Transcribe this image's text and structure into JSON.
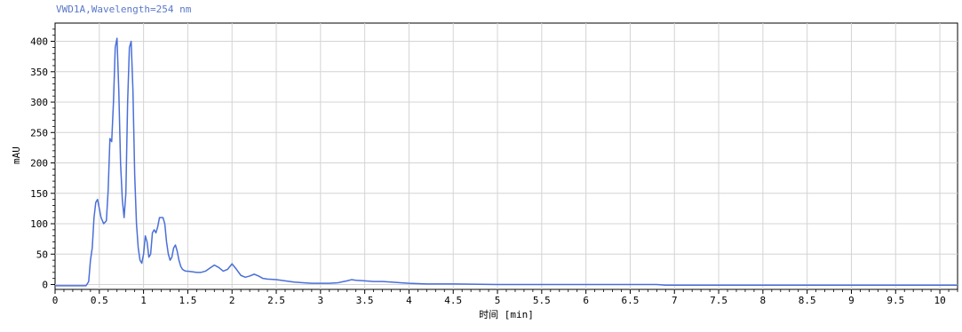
{
  "chart_data": {
    "type": "line",
    "title": "VWD1A,Wavelength=254 nm",
    "xlabel": "时间 [min]",
    "ylabel": "mAU",
    "xlim": [
      0,
      10.2
    ],
    "ylim": [
      -8,
      430
    ],
    "x_ticks": [
      0,
      0.5,
      1,
      1.5,
      2,
      2.5,
      3,
      3.5,
      4,
      4.5,
      5,
      5.5,
      6,
      6.5,
      7,
      7.5,
      8,
      8.5,
      9,
      9.5,
      10
    ],
    "x_tick_labels": [
      "0",
      "0.5",
      "1",
      "1.5",
      "2",
      "2.5",
      "3",
      "3.5",
      "4",
      "4.5",
      "5",
      "5.5",
      "6",
      "6.5",
      "7",
      "7.5",
      "8",
      "8.5",
      "9",
      "9.5",
      "10"
    ],
    "y_ticks": [
      0,
      50,
      100,
      150,
      200,
      250,
      300,
      350,
      400
    ],
    "y_tick_labels": [
      "0",
      "50",
      "100",
      "150",
      "200",
      "250",
      "300",
      "350",
      "400"
    ],
    "grid": true,
    "line_color": "#4a6fd8",
    "series": [
      {
        "x": [
          0,
          0.1,
          0.2,
          0.3,
          0.35,
          0.38,
          0.4,
          0.42,
          0.44,
          0.46,
          0.48,
          0.5,
          0.52,
          0.55,
          0.58,
          0.6,
          0.62,
          0.64,
          0.66,
          0.68,
          0.7,
          0.72,
          0.74,
          0.76,
          0.78,
          0.8,
          0.82,
          0.84,
          0.86,
          0.88,
          0.9,
          0.92,
          0.94,
          0.96,
          0.98,
          1.0,
          1.02,
          1.04,
          1.06,
          1.08,
          1.1,
          1.12,
          1.14,
          1.16,
          1.18,
          1.2,
          1.22,
          1.24,
          1.26,
          1.28,
          1.3,
          1.32,
          1.34,
          1.36,
          1.38,
          1.4,
          1.42,
          1.44,
          1.46,
          1.48,
          1.5,
          1.55,
          1.6,
          1.65,
          1.7,
          1.75,
          1.8,
          1.85,
          1.9,
          1.95,
          2.0,
          2.05,
          2.1,
          2.15,
          2.2,
          2.25,
          2.3,
          2.35,
          2.4,
          2.5,
          2.6,
          2.7,
          2.8,
          2.9,
          3.0,
          3.1,
          3.2,
          3.3,
          3.35,
          3.4,
          3.5,
          3.6,
          3.7,
          3.8,
          3.9,
          4.0,
          4.2,
          4.5,
          5.0,
          5.5,
          6.0,
          6.5,
          6.8,
          6.9,
          7.0,
          7.5,
          8.0,
          8.5,
          9.0,
          9.5,
          10.0,
          10.2
        ],
        "y": [
          -2,
          -2,
          -2,
          -2,
          -2,
          5,
          40,
          60,
          110,
          135,
          140,
          125,
          110,
          100,
          105,
          155,
          240,
          235,
          300,
          390,
          405,
          320,
          200,
          140,
          110,
          150,
          300,
          390,
          400,
          320,
          180,
          100,
          60,
          40,
          35,
          50,
          80,
          70,
          45,
          50,
          85,
          90,
          85,
          95,
          110,
          110,
          110,
          100,
          70,
          50,
          40,
          45,
          60,
          65,
          55,
          40,
          30,
          25,
          23,
          22,
          22,
          21,
          20,
          20,
          22,
          27,
          32,
          28,
          22,
          25,
          34,
          25,
          15,
          12,
          14,
          17,
          14,
          10,
          9,
          8,
          6,
          4,
          3,
          2,
          2,
          2,
          3,
          6,
          8,
          7,
          6,
          5,
          5,
          4,
          3,
          2,
          1,
          1,
          0,
          0,
          0,
          0,
          0,
          -1,
          -1,
          -1,
          -1,
          -1,
          -1,
          -1,
          -1,
          -1
        ]
      }
    ]
  }
}
